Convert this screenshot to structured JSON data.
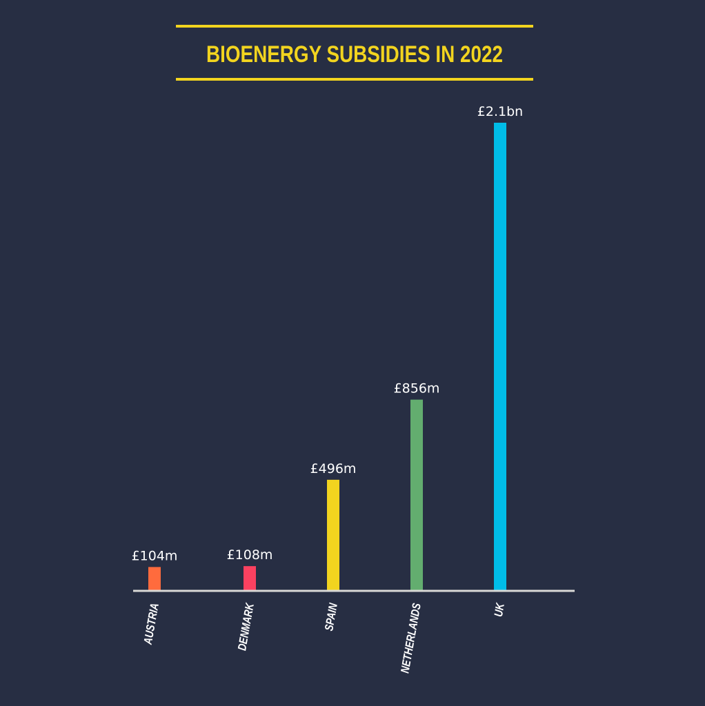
{
  "chart_data": {
    "type": "bar",
    "title": "BIOENERGY SUBSIDIES IN 2022",
    "xlabel": "",
    "ylabel": "",
    "unit": "£ million",
    "categories": [
      "AUSTRIA",
      "DENMARK",
      "SPAIN",
      "NETHERLANDS",
      "UK"
    ],
    "values": [
      104,
      108,
      496,
      856,
      2100
    ],
    "value_labels": [
      "£104m",
      "£108m",
      "£496m",
      "£856m",
      "£2.1bn"
    ],
    "colors": [
      "#ff6b3d",
      "#fa4160",
      "#f2d41f",
      "#63ad6f",
      "#00bde8"
    ],
    "ylim": [
      0,
      2100
    ],
    "grid": false,
    "legend": "none"
  },
  "colors": {
    "background": "#272e43",
    "title": "#f2d41f",
    "axis": "#d9d9d6"
  }
}
